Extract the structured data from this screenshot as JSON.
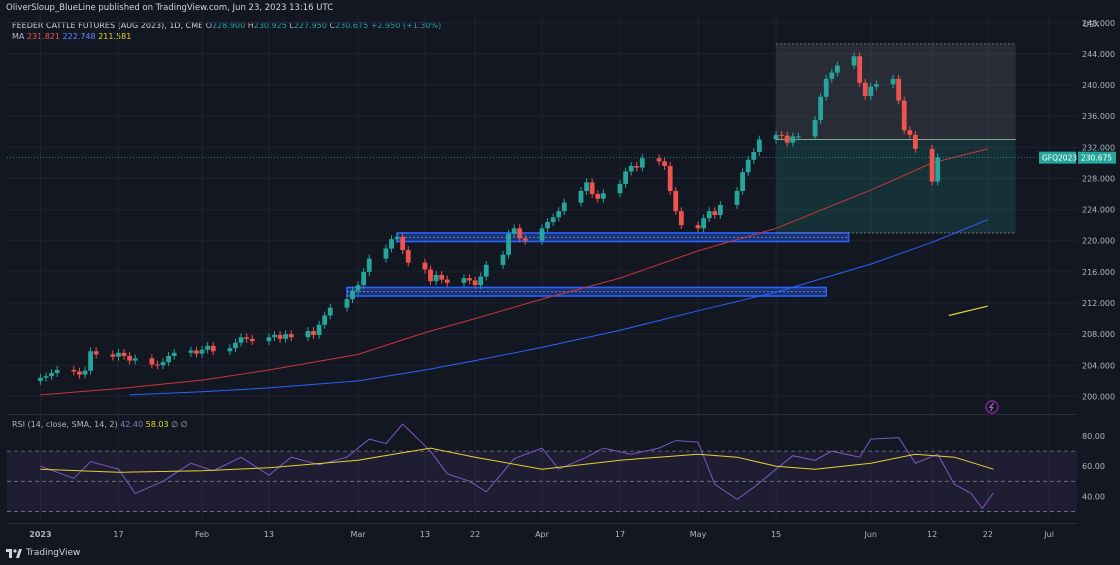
{
  "publisher": "OliverSloup_BlueLine published on TradingView.com, Jun 23, 2023 13:16 UTC",
  "legend": {
    "symbol": "FEEDER CATTLE FUTURES (AUG 2023), 1D, CME",
    "o_label": "O",
    "o": "228.900",
    "h_label": "H",
    "h": "230.925",
    "l_label": "L",
    "l": "227.950",
    "c_label": "C",
    "c": "230.675",
    "change": "+2.950 (+1.30%)",
    "ma_label": "MA",
    "ma1": "231.821",
    "ma2": "222.748",
    "ma3": "211.581"
  },
  "rsi_legend": {
    "label": "RSI (14, close, SMA, 14, 2)",
    "v1": "42.40",
    "v2": "58.03",
    "extra": "∅ ∅"
  },
  "footer": {
    "brand": "TradingView"
  },
  "colors": {
    "background": "#131722",
    "up": "#26a69a",
    "down": "#ef5350",
    "ma1": "#c9353d",
    "ma2": "#2962ff",
    "ma3": "#e5d230",
    "rsi": "#7e57c2",
    "rsi_ma": "#e5d230",
    "zone": "#2962ff"
  },
  "chart_data": {
    "type": "candlestick",
    "currency": "USX",
    "price_tag_label": "GFQ2023",
    "price_tag_value": "230.675",
    "y_ticks": [
      "248.000",
      "244.000",
      "240.000",
      "236.000",
      "232.000",
      "228.000",
      "224.000",
      "220.000",
      "216.000",
      "212.000",
      "208.000",
      "204.000",
      "200.000"
    ],
    "y_range": [
      198.0,
      249.0
    ],
    "rsi_ticks": [
      "80.00",
      "60.00",
      "40.00"
    ],
    "rsi_range": [
      25,
      90
    ],
    "rsi_bands": [
      70,
      50,
      30
    ],
    "x_labels": [
      {
        "label": "2023",
        "date": "2023-01-03"
      },
      {
        "label": "17",
        "date": "2023-01-17"
      },
      {
        "label": "Feb",
        "date": "2023-02-01"
      },
      {
        "label": "13",
        "date": "2023-02-13"
      },
      {
        "label": "Mar",
        "date": "2023-03-01"
      },
      {
        "label": "13",
        "date": "2023-03-13"
      },
      {
        "label": "22",
        "date": "2023-03-22"
      },
      {
        "label": "Apr",
        "date": "2023-04-03"
      },
      {
        "label": "17",
        "date": "2023-04-17"
      },
      {
        "label": "May",
        "date": "2023-05-01"
      },
      {
        "label": "15",
        "date": "2023-05-15"
      },
      {
        "label": "Jun",
        "date": "2023-06-01"
      },
      {
        "label": "12",
        "date": "2023-06-12"
      },
      {
        "label": "22",
        "date": "2023-06-22"
      },
      {
        "label": "Jul",
        "date": "2023-07-03"
      }
    ],
    "x_date_range": [
      "2022-12-28",
      "2023-07-08"
    ],
    "closes": [
      202.4,
      202.6,
      203.0,
      203.4,
      203.2,
      202.8,
      203.3,
      205.8,
      205.4,
      205.1,
      205.6,
      205.2,
      204.6,
      204.9,
      204.1,
      204.0,
      204.4,
      205.2,
      205.6,
      205.9,
      205.5,
      206.0,
      206.5,
      205.8,
      206.2,
      206.9,
      207.6,
      207.4,
      207.1,
      207.6,
      207.9,
      207.4,
      208.0,
      207.6,
      208.4,
      207.9,
      209.2,
      210.4,
      211.4,
      212.5,
      213.6,
      214.3,
      216.0,
      217.7,
      219.0,
      220.2,
      220.5,
      218.8,
      217.2,
      216.3,
      214.8,
      215.6,
      215.0,
      214.6,
      215.2,
      214.9,
      214.3,
      215.4,
      216.9,
      218.2,
      220.9,
      221.6,
      220.3,
      220.0,
      221.6,
      222.4,
      223.0,
      223.8,
      224.9,
      226.4,
      227.5,
      226.0,
      225.4,
      226.1,
      227.3,
      228.9,
      229.6,
      229.4,
      230.6,
      230.2,
      229.6,
      226.4,
      223.8,
      222.0,
      221.6,
      222.9,
      223.8,
      223.3,
      224.6,
      226.4,
      228.8,
      230.4,
      231.4,
      233.0,
      233.6,
      233.5,
      232.6,
      233.4,
      233.4,
      235.5,
      238.5,
      240.8,
      241.6,
      242.5,
      243.7,
      240.3,
      238.6,
      239.8,
      240.1,
      240.8,
      238.0,
      234.2,
      233.6,
      231.8,
      227.6,
      230.7
    ],
    "ma_short": [
      {
        "x": "2023-01-03",
        "y": 200.2
      },
      {
        "x": "2023-01-17",
        "y": 201.0
      },
      {
        "x": "2023-02-01",
        "y": 202.1
      },
      {
        "x": "2023-02-13",
        "y": 203.4
      },
      {
        "x": "2023-03-01",
        "y": 205.4
      },
      {
        "x": "2023-03-13",
        "y": 208.2
      },
      {
        "x": "2023-03-22",
        "y": 210.0
      },
      {
        "x": "2023-04-03",
        "y": 212.5
      },
      {
        "x": "2023-04-17",
        "y": 215.2
      },
      {
        "x": "2023-05-01",
        "y": 218.7
      },
      {
        "x": "2023-05-15",
        "y": 221.6
      },
      {
        "x": "2023-06-01",
        "y": 226.5
      },
      {
        "x": "2023-06-12",
        "y": 230.0
      },
      {
        "x": "2023-06-22",
        "y": 231.8
      }
    ],
    "ma_mid": [
      {
        "x": "2023-01-19",
        "y": 200.2
      },
      {
        "x": "2023-02-01",
        "y": 200.6
      },
      {
        "x": "2023-02-13",
        "y": 201.1
      },
      {
        "x": "2023-03-01",
        "y": 202.0
      },
      {
        "x": "2023-03-13",
        "y": 203.4
      },
      {
        "x": "2023-03-22",
        "y": 204.6
      },
      {
        "x": "2023-04-03",
        "y": 206.3
      },
      {
        "x": "2023-04-17",
        "y": 208.5
      },
      {
        "x": "2023-05-01",
        "y": 211.0
      },
      {
        "x": "2023-05-15",
        "y": 213.4
      },
      {
        "x": "2023-06-01",
        "y": 217.0
      },
      {
        "x": "2023-06-12",
        "y": 219.8
      },
      {
        "x": "2023-06-22",
        "y": 222.7
      }
    ],
    "ma_long": [
      {
        "x": "2023-06-15",
        "y": 210.4
      },
      {
        "x": "2023-06-22",
        "y": 211.6
      }
    ],
    "zones": [
      {
        "from": "2023-03-08",
        "to": "2023-05-28",
        "low": 219.9,
        "high": 221.0
      },
      {
        "from": "2023-02-27",
        "to": "2023-05-24",
        "low": 212.9,
        "high": 214.0
      }
    ],
    "range_box": {
      "from": "2023-05-15",
      "to": "2023-06-27",
      "low": 221.0,
      "high": 245.3,
      "mid": 233.0
    },
    "rsi": [
      {
        "x": "2023-01-03",
        "y": 60
      },
      {
        "x": "2023-01-09",
        "y": 52
      },
      {
        "x": "2023-01-12",
        "y": 63
      },
      {
        "x": "2023-01-17",
        "y": 58
      },
      {
        "x": "2023-01-20",
        "y": 42
      },
      {
        "x": "2023-01-25",
        "y": 50
      },
      {
        "x": "2023-01-30",
        "y": 62
      },
      {
        "x": "2023-02-03",
        "y": 57
      },
      {
        "x": "2023-02-08",
        "y": 66
      },
      {
        "x": "2023-02-13",
        "y": 54
      },
      {
        "x": "2023-02-17",
        "y": 66
      },
      {
        "x": "2023-02-22",
        "y": 61
      },
      {
        "x": "2023-02-27",
        "y": 66
      },
      {
        "x": "2023-03-03",
        "y": 78
      },
      {
        "x": "2023-03-06",
        "y": 75
      },
      {
        "x": "2023-03-09",
        "y": 88
      },
      {
        "x": "2023-03-14",
        "y": 70
      },
      {
        "x": "2023-03-17",
        "y": 55
      },
      {
        "x": "2023-03-21",
        "y": 50
      },
      {
        "x": "2023-03-24",
        "y": 43
      },
      {
        "x": "2023-03-29",
        "y": 65
      },
      {
        "x": "2023-04-03",
        "y": 72
      },
      {
        "x": "2023-04-06",
        "y": 58
      },
      {
        "x": "2023-04-11",
        "y": 66
      },
      {
        "x": "2023-04-14",
        "y": 72
      },
      {
        "x": "2023-04-19",
        "y": 68
      },
      {
        "x": "2023-04-24",
        "y": 72
      },
      {
        "x": "2023-04-27",
        "y": 77
      },
      {
        "x": "2023-05-01",
        "y": 76
      },
      {
        "x": "2023-05-04",
        "y": 48
      },
      {
        "x": "2023-05-08",
        "y": 38
      },
      {
        "x": "2023-05-11",
        "y": 46
      },
      {
        "x": "2023-05-15",
        "y": 58
      },
      {
        "x": "2023-05-18",
        "y": 67
      },
      {
        "x": "2023-05-22",
        "y": 64
      },
      {
        "x": "2023-05-25",
        "y": 70
      },
      {
        "x": "2023-05-30",
        "y": 66
      },
      {
        "x": "2023-06-01",
        "y": 78
      },
      {
        "x": "2023-06-06",
        "y": 79
      },
      {
        "x": "2023-06-09",
        "y": 62
      },
      {
        "x": "2023-06-13",
        "y": 68
      },
      {
        "x": "2023-06-16",
        "y": 48
      },
      {
        "x": "2023-06-19",
        "y": 42
      },
      {
        "x": "2023-06-21",
        "y": 32
      },
      {
        "x": "2023-06-23",
        "y": 42.4
      }
    ],
    "rsi_ma": [
      {
        "x": "2023-01-03",
        "y": 58
      },
      {
        "x": "2023-01-17",
        "y": 56
      },
      {
        "x": "2023-02-01",
        "y": 57
      },
      {
        "x": "2023-02-13",
        "y": 59
      },
      {
        "x": "2023-03-01",
        "y": 64
      },
      {
        "x": "2023-03-09",
        "y": 69
      },
      {
        "x": "2023-03-14",
        "y": 72
      },
      {
        "x": "2023-03-22",
        "y": 66
      },
      {
        "x": "2023-04-03",
        "y": 58
      },
      {
        "x": "2023-04-17",
        "y": 64
      },
      {
        "x": "2023-05-01",
        "y": 68
      },
      {
        "x": "2023-05-08",
        "y": 66
      },
      {
        "x": "2023-05-15",
        "y": 60
      },
      {
        "x": "2023-05-22",
        "y": 58
      },
      {
        "x": "2023-06-01",
        "y": 62
      },
      {
        "x": "2023-06-09",
        "y": 68
      },
      {
        "x": "2023-06-16",
        "y": 66
      },
      {
        "x": "2023-06-23",
        "y": 58
      }
    ]
  }
}
